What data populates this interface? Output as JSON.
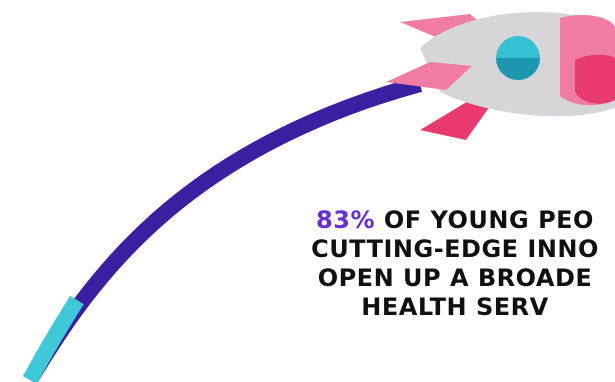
{
  "stat": {
    "highlight": "83%",
    "lines": [
      " OF YOUNG PEO",
      "CUTTING-EDGE INNO",
      "OPEN UP A BROADE",
      "HEALTH SERV"
    ]
  },
  "illustration": {
    "icon": "rocket-icon",
    "colors": {
      "trail_main": "#3a1fa0",
      "trail_tip": "#3ec8d8",
      "rocket_body": "#d6d6d8",
      "rocket_fin": "#f07ba5",
      "rocket_fin_dark": "#e83a6e",
      "window": "#36c0d4"
    }
  }
}
